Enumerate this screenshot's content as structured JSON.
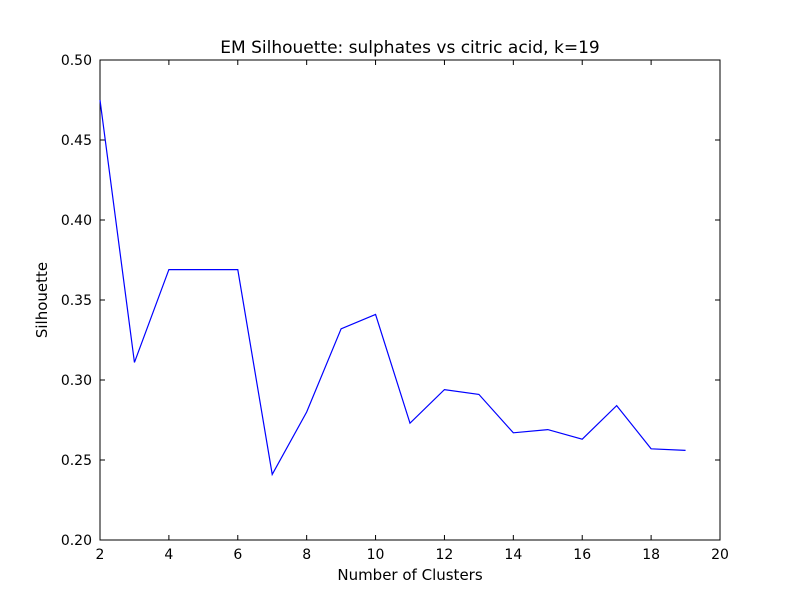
{
  "chart_data": {
    "type": "line",
    "title": "EM Silhouette: sulphates vs citric acid, k=19",
    "xlabel": "Number of Clusters",
    "ylabel": "Silhouette",
    "xlim": [
      2,
      20
    ],
    "ylim": [
      0.2,
      0.5
    ],
    "xticks": [
      2,
      4,
      6,
      8,
      10,
      12,
      14,
      16,
      18,
      20
    ],
    "yticks": [
      0.2,
      0.25,
      0.3,
      0.35,
      0.4,
      0.45,
      0.5
    ],
    "ytick_labels": [
      "0.20",
      "0.25",
      "0.30",
      "0.35",
      "0.40",
      "0.45",
      "0.50"
    ],
    "grid": false,
    "series": [
      {
        "color": "#0000ff",
        "x": [
          2,
          3,
          4,
          5,
          6,
          7,
          8,
          9,
          10,
          11,
          12,
          13,
          14,
          15,
          16,
          17,
          18,
          19
        ],
        "y": [
          0.475,
          0.311,
          0.369,
          0.369,
          0.369,
          0.241,
          0.28,
          0.332,
          0.341,
          0.273,
          0.294,
          0.291,
          0.267,
          0.269,
          0.263,
          0.284,
          0.257,
          0.256
        ]
      }
    ]
  }
}
